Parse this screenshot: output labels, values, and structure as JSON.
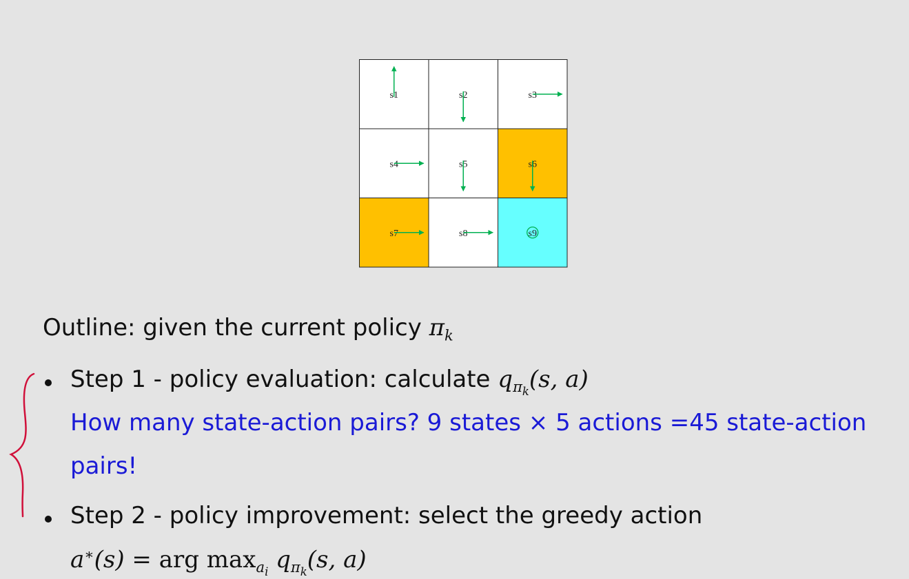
{
  "grid": {
    "cells": [
      {
        "label": "s1",
        "color": "#ffffff",
        "action": "up"
      },
      {
        "label": "s2",
        "color": "#ffffff",
        "action": "down"
      },
      {
        "label": "s3",
        "color": "#ffffff",
        "action": "right"
      },
      {
        "label": "s4",
        "color": "#ffffff",
        "action": "right"
      },
      {
        "label": "s5",
        "color": "#ffffff",
        "action": "down"
      },
      {
        "label": "s6",
        "color": "#ffc000",
        "action": "down"
      },
      {
        "label": "s7",
        "color": "#ffc000",
        "action": "right"
      },
      {
        "label": "s8",
        "color": "#ffffff",
        "action": "right"
      },
      {
        "label": "s9",
        "color": "#66ffff",
        "action": "stay"
      }
    ],
    "arrow_color": "#00b050"
  },
  "outline": {
    "prefix": "Outline: given the current policy ",
    "pi": "π",
    "k": "k"
  },
  "step1": {
    "label": "Step 1 - policy evaluation: calculate ",
    "q": "q",
    "pi": "π",
    "k": "k",
    "args": "(s, a)"
  },
  "note": {
    "part1": "How many state-action pairs? 9 states ",
    "times": "×",
    "part2": " 5 actions =45 state-action",
    "line2": "pairs!",
    "color": "#1a1ad6"
  },
  "step2": {
    "label": "Step 2 - policy improvement: select the greedy action"
  },
  "formula": {
    "a": "a",
    "star": "∗",
    "s1": "(s)",
    "eq": " = ",
    "argmax": "arg max",
    "ai": "a",
    "i": "i",
    "q": "q",
    "pi": "π",
    "k": "k",
    "args": "(s, a)"
  },
  "annotation": {
    "brace_color": "#d0103a"
  }
}
